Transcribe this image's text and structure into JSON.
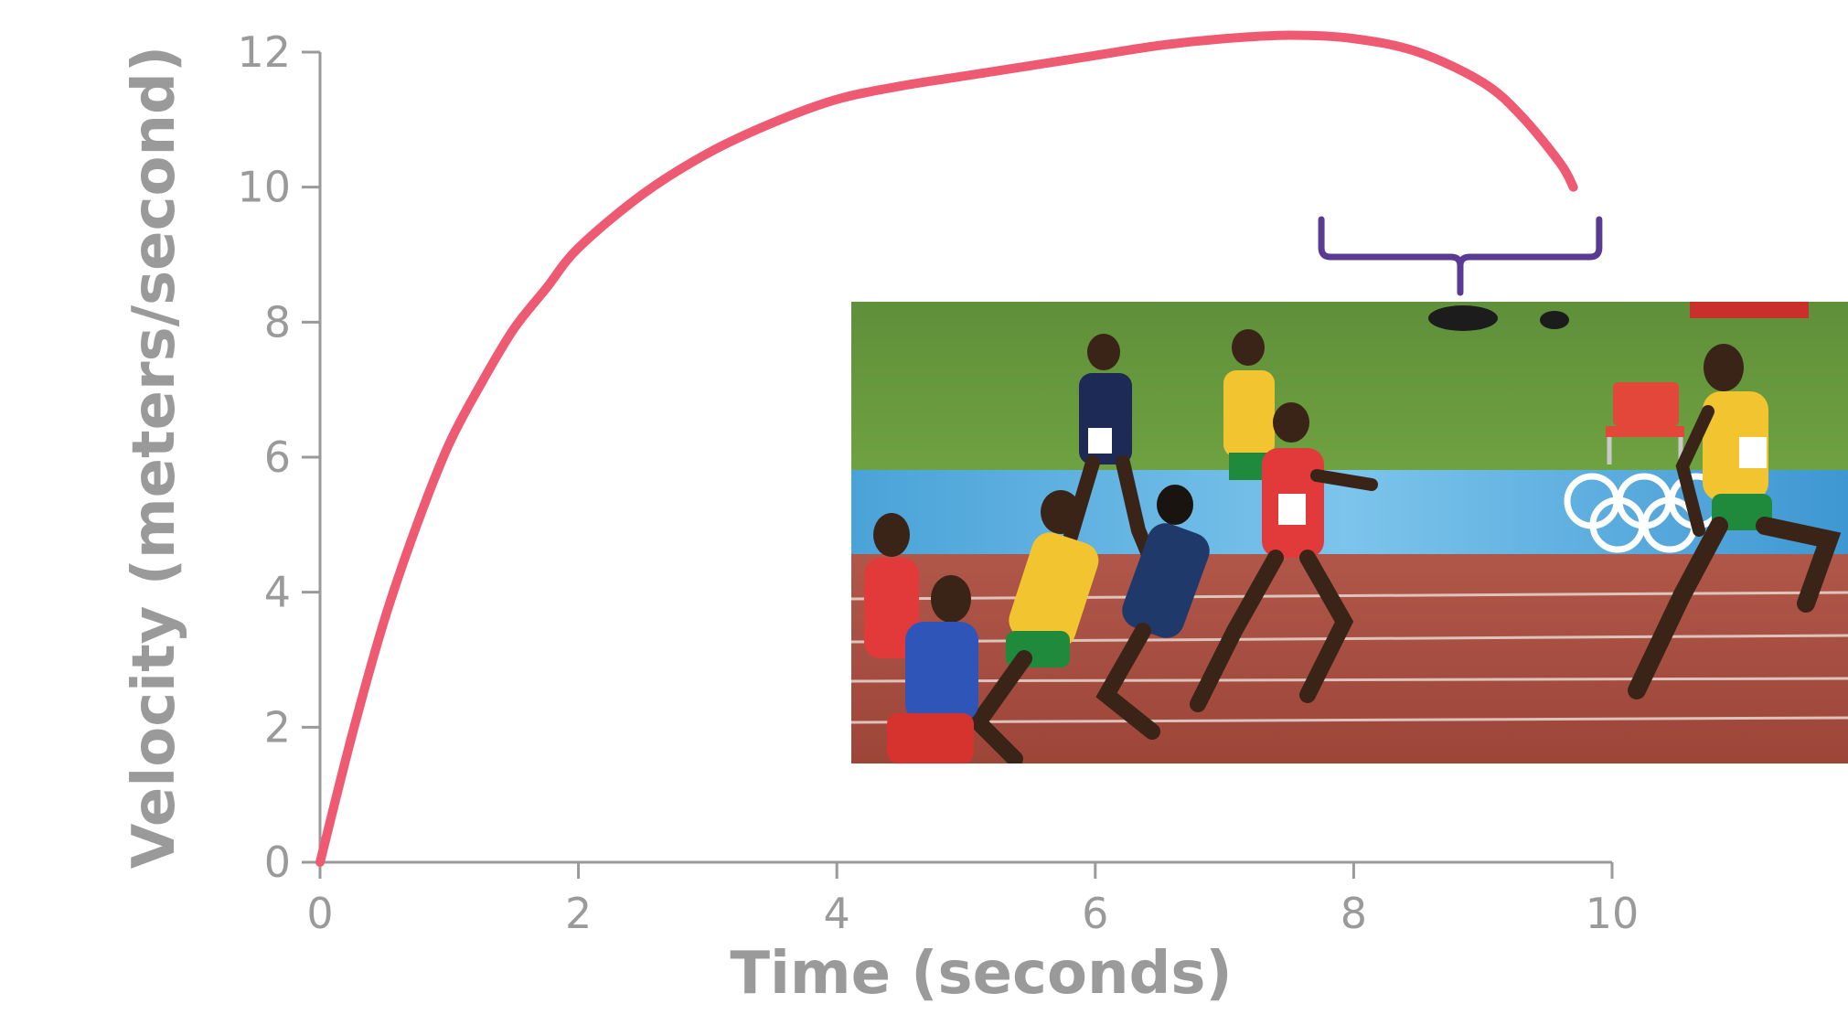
{
  "chart_data": {
    "type": "line",
    "title": "",
    "xlabel": "Time (seconds)",
    "ylabel": "Velocity (meters/second)",
    "xlim": [
      0,
      10
    ],
    "ylim": [
      0,
      12
    ],
    "xticks": [
      "0",
      "2",
      "4",
      "6",
      "8",
      "10"
    ],
    "yticks": [
      "0",
      "2",
      "4",
      "6",
      "8",
      "10",
      "12"
    ],
    "grid": false,
    "legend": "none",
    "series": [
      {
        "color": "#ef5a73",
        "x": [
          0,
          0.25,
          0.5,
          0.75,
          1.0,
          1.25,
          1.5,
          1.75,
          2.0,
          2.5,
          3.0,
          3.5,
          4.0,
          4.5,
          5.0,
          5.5,
          6.0,
          6.5,
          7.0,
          7.5,
          8.0,
          8.5,
          9.0,
          9.3,
          9.6,
          9.7
        ],
        "y": [
          0,
          1.9,
          3.6,
          5.0,
          6.2,
          7.1,
          7.9,
          8.5,
          9.1,
          9.9,
          10.5,
          10.95,
          11.3,
          11.5,
          11.65,
          11.8,
          11.95,
          12.1,
          12.2,
          12.25,
          12.2,
          12.0,
          11.55,
          11.05,
          10.35,
          10.0
        ]
      }
    ],
    "annotations": [
      {
        "type": "bracket",
        "x_start": 7.75,
        "x_end": 9.9,
        "color": "#5a3a92"
      }
    ]
  },
  "photo": {
    "subject": "sprint-race-photo"
  }
}
